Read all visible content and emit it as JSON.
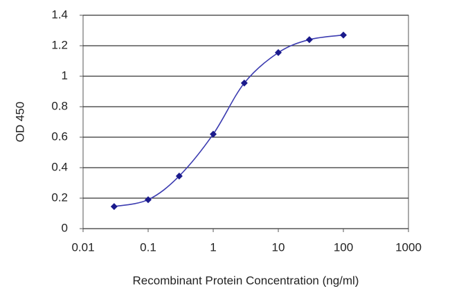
{
  "chart_data": {
    "type": "line",
    "xlabel": "Recombinant Protein Concentration (ng/ml)",
    "ylabel": "OD 450",
    "x": [
      0.03,
      0.1,
      0.3,
      1,
      3,
      10,
      30,
      100
    ],
    "values": [
      0.145,
      0.19,
      0.345,
      0.62,
      0.955,
      1.155,
      1.24,
      1.27
    ],
    "color": "#1a1a8c",
    "xscale": "log",
    "xlim": [
      0.01,
      1000
    ],
    "xticks": [
      0.01,
      0.1,
      1,
      10,
      100,
      1000
    ],
    "ylim": [
      0,
      1.4
    ],
    "yticks": [
      0,
      0.2,
      0.4,
      0.6,
      0.8,
      1,
      1.2,
      1.4
    ],
    "grid": true
  }
}
